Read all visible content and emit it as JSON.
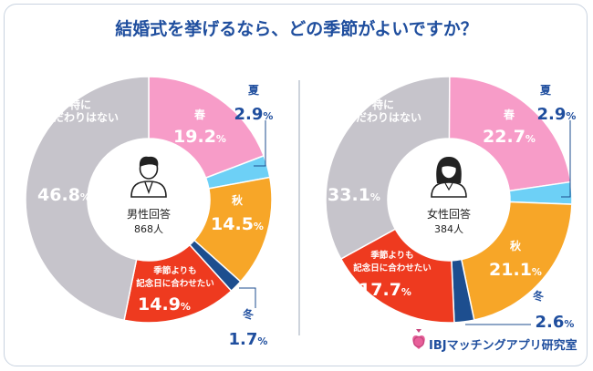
{
  "title": "結婚式を挙げるなら、どの季節がよいですか？",
  "brand": {
    "name": "IBJマッチングアプリ研究室"
  },
  "colors": {
    "title": "#1f4e9e",
    "spring": "#f79cc8",
    "summer": "#6dd0f6",
    "autumn": "#f7a628",
    "winter": "#1d4e8f",
    "anniversary": "#ee3a1f",
    "none": "#c6c4cb",
    "divider": "#aeb7c4"
  },
  "chart_data": [
    {
      "type": "pie",
      "center_label": "男性回答",
      "count_label": "868人",
      "unit": "%",
      "slices": [
        {
          "key": "spring",
          "label": "春",
          "value": 19.2
        },
        {
          "key": "summer",
          "label": "夏",
          "value": 2.9
        },
        {
          "key": "autumn",
          "label": "秋",
          "value": 14.5
        },
        {
          "key": "winter",
          "label": "冬",
          "value": 1.7
        },
        {
          "key": "anniversary",
          "label": "季節よりも記念日に合わせたい",
          "label_lines": [
            "季節よりも",
            "記念日に合わせたい"
          ],
          "value": 14.9
        },
        {
          "key": "none",
          "label": "特にこだわりはない",
          "label_lines": [
            "特に",
            "こだわりはない"
          ],
          "value": 46.8
        }
      ]
    },
    {
      "type": "pie",
      "center_label": "女性回答",
      "count_label": "384人",
      "unit": "%",
      "slices": [
        {
          "key": "spring",
          "label": "春",
          "value": 22.7
        },
        {
          "key": "summer",
          "label": "夏",
          "value": 2.9
        },
        {
          "key": "autumn",
          "label": "秋",
          "value": 21.1
        },
        {
          "key": "winter",
          "label": "冬",
          "value": 2.6
        },
        {
          "key": "anniversary",
          "label": "季節よりも記念日に合わせたい",
          "label_lines": [
            "季節よりも",
            "記念日に合わせたい"
          ],
          "value": 17.7
        },
        {
          "key": "none",
          "label": "特にこだわりはない",
          "label_lines": [
            "特に",
            "こだわりはない"
          ],
          "value": 33.1
        }
      ]
    }
  ]
}
